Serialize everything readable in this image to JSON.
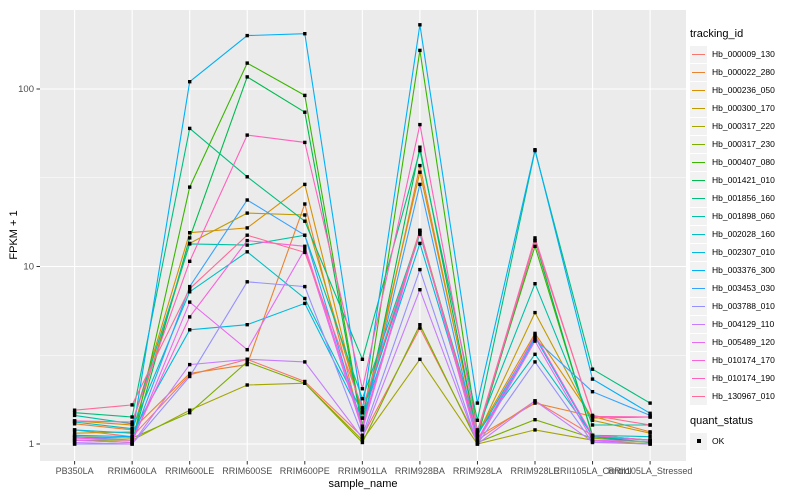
{
  "figure": {
    "background": "#FFFFFF",
    "panel_background": "#EBEBEB",
    "grid_color": "#FFFFFF",
    "axis_text_color": "#4D4D4D",
    "point_color": "#000000"
  },
  "chart_data": {
    "type": "line",
    "title": "",
    "xlabel": "sample_name",
    "ylabel": "FPKM + 1",
    "y_scale": "log10",
    "y_ticks": [
      1,
      10,
      100
    ],
    "y_minor_ticks": [
      3.162,
      31.62
    ],
    "ylim": [
      0.8,
      280
    ],
    "grid": true,
    "legend_position": "right",
    "point_marker": "black-square",
    "categories": [
      "PB350LA",
      "RRIM600LA",
      "RRIM600LE",
      "RRIM600SE",
      "RRIM600PE",
      "RRIM901LA",
      "RRIM928BA",
      "RRIM928LA",
      "RRIM928LE",
      "RRII105LA_Control",
      "RRII105LA_Stressed"
    ],
    "series": [
      {
        "name": "Hb_000009_130",
        "color": "#F8766D",
        "values": [
          1.2,
          1.1,
          2.45,
          3.0,
          2.25,
          1.1,
          4.5,
          1.05,
          1.75,
          1.12,
          1.05
        ]
      },
      {
        "name": "Hb_000022_280",
        "color": "#EA8331",
        "values": [
          1.3,
          1.2,
          2.5,
          2.8,
          22.5,
          1.2,
          37.0,
          1.1,
          1.7,
          1.43,
          1.17
        ]
      },
      {
        "name": "Hb_000236_050",
        "color": "#D89000",
        "values": [
          1.35,
          1.28,
          15.5,
          16.5,
          29.0,
          1.4,
          34.0,
          1.15,
          4.2,
          1.4,
          1.42
        ]
      },
      {
        "name": "Hb_000300_170",
        "color": "#C09B00",
        "values": [
          1.15,
          1.17,
          13.5,
          20.0,
          19.5,
          1.5,
          16.0,
          1.12,
          5.5,
          1.36,
          1.15
        ]
      },
      {
        "name": "Hb_000317_220",
        "color": "#A3A500",
        "values": [
          1.05,
          1.05,
          1.55,
          2.15,
          2.2,
          1.05,
          3.0,
          1.0,
          1.2,
          1.05,
          1.0
        ]
      },
      {
        "name": "Hb_000317_230",
        "color": "#7CAE00",
        "values": [
          1.1,
          1.08,
          1.5,
          2.9,
          2.2,
          1.02,
          4.7,
          1.02,
          1.37,
          1.08,
          1.02
        ]
      },
      {
        "name": "Hb_000407_080",
        "color": "#39B600",
        "values": [
          1.0,
          1.0,
          28.0,
          140,
          92.0,
          1.26,
          165,
          1.17,
          13.0,
          1.12,
          1.05
        ]
      },
      {
        "name": "Hb_001421_010",
        "color": "#00BB4E",
        "values": [
          1.05,
          1.02,
          14.5,
          117,
          74.0,
          1.22,
          47.0,
          1.1,
          14.0,
          1.1,
          1.02
        ]
      },
      {
        "name": "Hb_001856_160",
        "color": "#00BF7D",
        "values": [
          1.5,
          1.42,
          60.0,
          32.0,
          18.0,
          3.0,
          45.0,
          1.36,
          45.0,
          2.64,
          1.7
        ]
      },
      {
        "name": "Hb_001898_060",
        "color": "#00C1A3",
        "values": [
          1.45,
          1.3,
          13.4,
          13.2,
          15.0,
          1.8,
          15.5,
          1.2,
          8.0,
          1.28,
          1.28
        ]
      },
      {
        "name": "Hb_002028_160",
        "color": "#00BFC4",
        "values": [
          1.33,
          1.22,
          7.2,
          12.1,
          6.6,
          1.5,
          15.2,
          1.15,
          3.2,
          1.12,
          1.1
        ]
      },
      {
        "name": "Hb_002307_010",
        "color": "#00BAE0",
        "values": [
          1.2,
          1.15,
          4.4,
          4.7,
          6.2,
          1.4,
          13.5,
          1.12,
          4.0,
          1.1,
          1.05
        ]
      },
      {
        "name": "Hb_003376_300",
        "color": "#00B0F6",
        "values": [
          1.12,
          1.1,
          110,
          200,
          205,
          1.56,
          230,
          1.7,
          45.5,
          2.32,
          1.49
        ]
      },
      {
        "name": "Hb_003453_030",
        "color": "#35A2FF",
        "values": [
          1.1,
          1.05,
          7.7,
          23.7,
          15.0,
          1.25,
          29.0,
          1.05,
          3.9,
          1.97,
          1.45
        ]
      },
      {
        "name": "Hb_003788_010",
        "color": "#9590FF",
        "values": [
          1.0,
          1.0,
          2.4,
          8.2,
          7.7,
          1.12,
          9.6,
          1.0,
          2.9,
          1.02,
          1.0
        ]
      },
      {
        "name": "Hb_004129_110",
        "color": "#C77CFF",
        "values": [
          1.02,
          1.0,
          2.8,
          3.0,
          2.9,
          1.08,
          7.4,
          1.0,
          1.75,
          1.03,
          1.0
        ]
      },
      {
        "name": "Hb_005489_120",
        "color": "#E76BF3",
        "values": [
          1.05,
          1.02,
          6.3,
          3.4,
          12.5,
          1.2,
          15.8,
          1.02,
          3.8,
          1.05,
          1.03
        ]
      },
      {
        "name": "Hb_010174_170",
        "color": "#FA62DB",
        "values": [
          1.08,
          1.05,
          5.2,
          14.0,
          13.0,
          1.26,
          16.0,
          1.05,
          4.1,
          1.12,
          1.05
        ]
      },
      {
        "name": "Hb_010174_190",
        "color": "#FF62BC",
        "values": [
          1.35,
          1.33,
          10.7,
          55.0,
          50.0,
          2.05,
          63.0,
          1.17,
          14.5,
          1.43,
          1.42
        ]
      },
      {
        "name": "Hb_130967_010",
        "color": "#FF6A98",
        "values": [
          1.55,
          1.66,
          7.5,
          15.0,
          12.0,
          1.6,
          15.5,
          1.15,
          14.0,
          1.45,
          1.28
        ]
      }
    ]
  },
  "legend": {
    "tracking_title": "tracking_id",
    "quant_title": "quant_status",
    "quant_items": [
      {
        "label": "OK"
      }
    ],
    "key_background": "#F2F2F2"
  }
}
